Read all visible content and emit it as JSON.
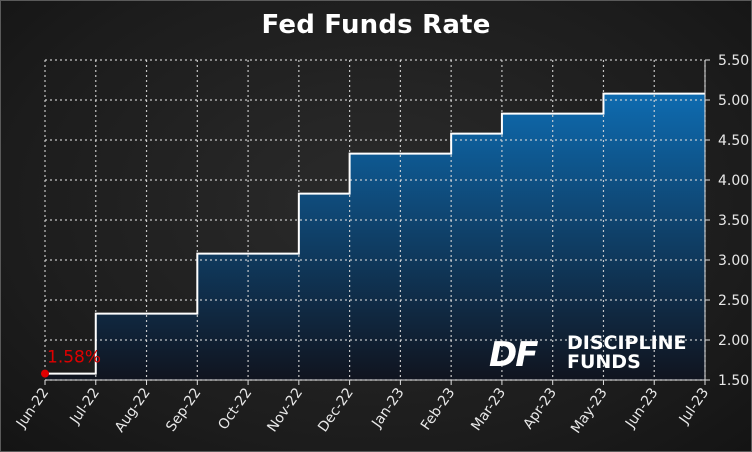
{
  "chart_data": {
    "type": "area",
    "title": "Fed Funds Rate",
    "xlabel": "",
    "ylabel": "",
    "categories": [
      "Jun-22",
      "Jul-22",
      "Aug-22",
      "Sep-22",
      "Oct-22",
      "Nov-22",
      "Dec-22",
      "Jan-23",
      "Feb-23",
      "Mar-23",
      "Apr-23",
      "May-23",
      "Jun-23",
      "Jul-23"
    ],
    "step_values": [
      1.58,
      2.33,
      2.33,
      3.08,
      3.08,
      3.83,
      4.33,
      4.33,
      4.58,
      4.83,
      4.83,
      5.08,
      5.08
    ],
    "ylim": [
      1.5,
      5.5
    ],
    "yticks": [
      "1.50",
      "2.00",
      "2.50",
      "3.00",
      "3.50",
      "4.00",
      "4.50",
      "5.00",
      "5.50"
    ],
    "ytick_values": [
      1.5,
      2.0,
      2.5,
      3.0,
      3.5,
      4.0,
      4.5,
      5.0,
      5.5
    ],
    "grid": true,
    "y_axis_side": "right",
    "annotation": {
      "text": "1.58%",
      "value": 1.58,
      "category": "Jun-22",
      "color": "#e00000"
    },
    "line_color": "#ffffff",
    "fill_top_color": "#0e6bb0",
    "fill_bottom_color": "#10141f"
  },
  "logo": {
    "line1": "DISCIPLINE",
    "line2": "FUNDS",
    "mark": "DF"
  }
}
